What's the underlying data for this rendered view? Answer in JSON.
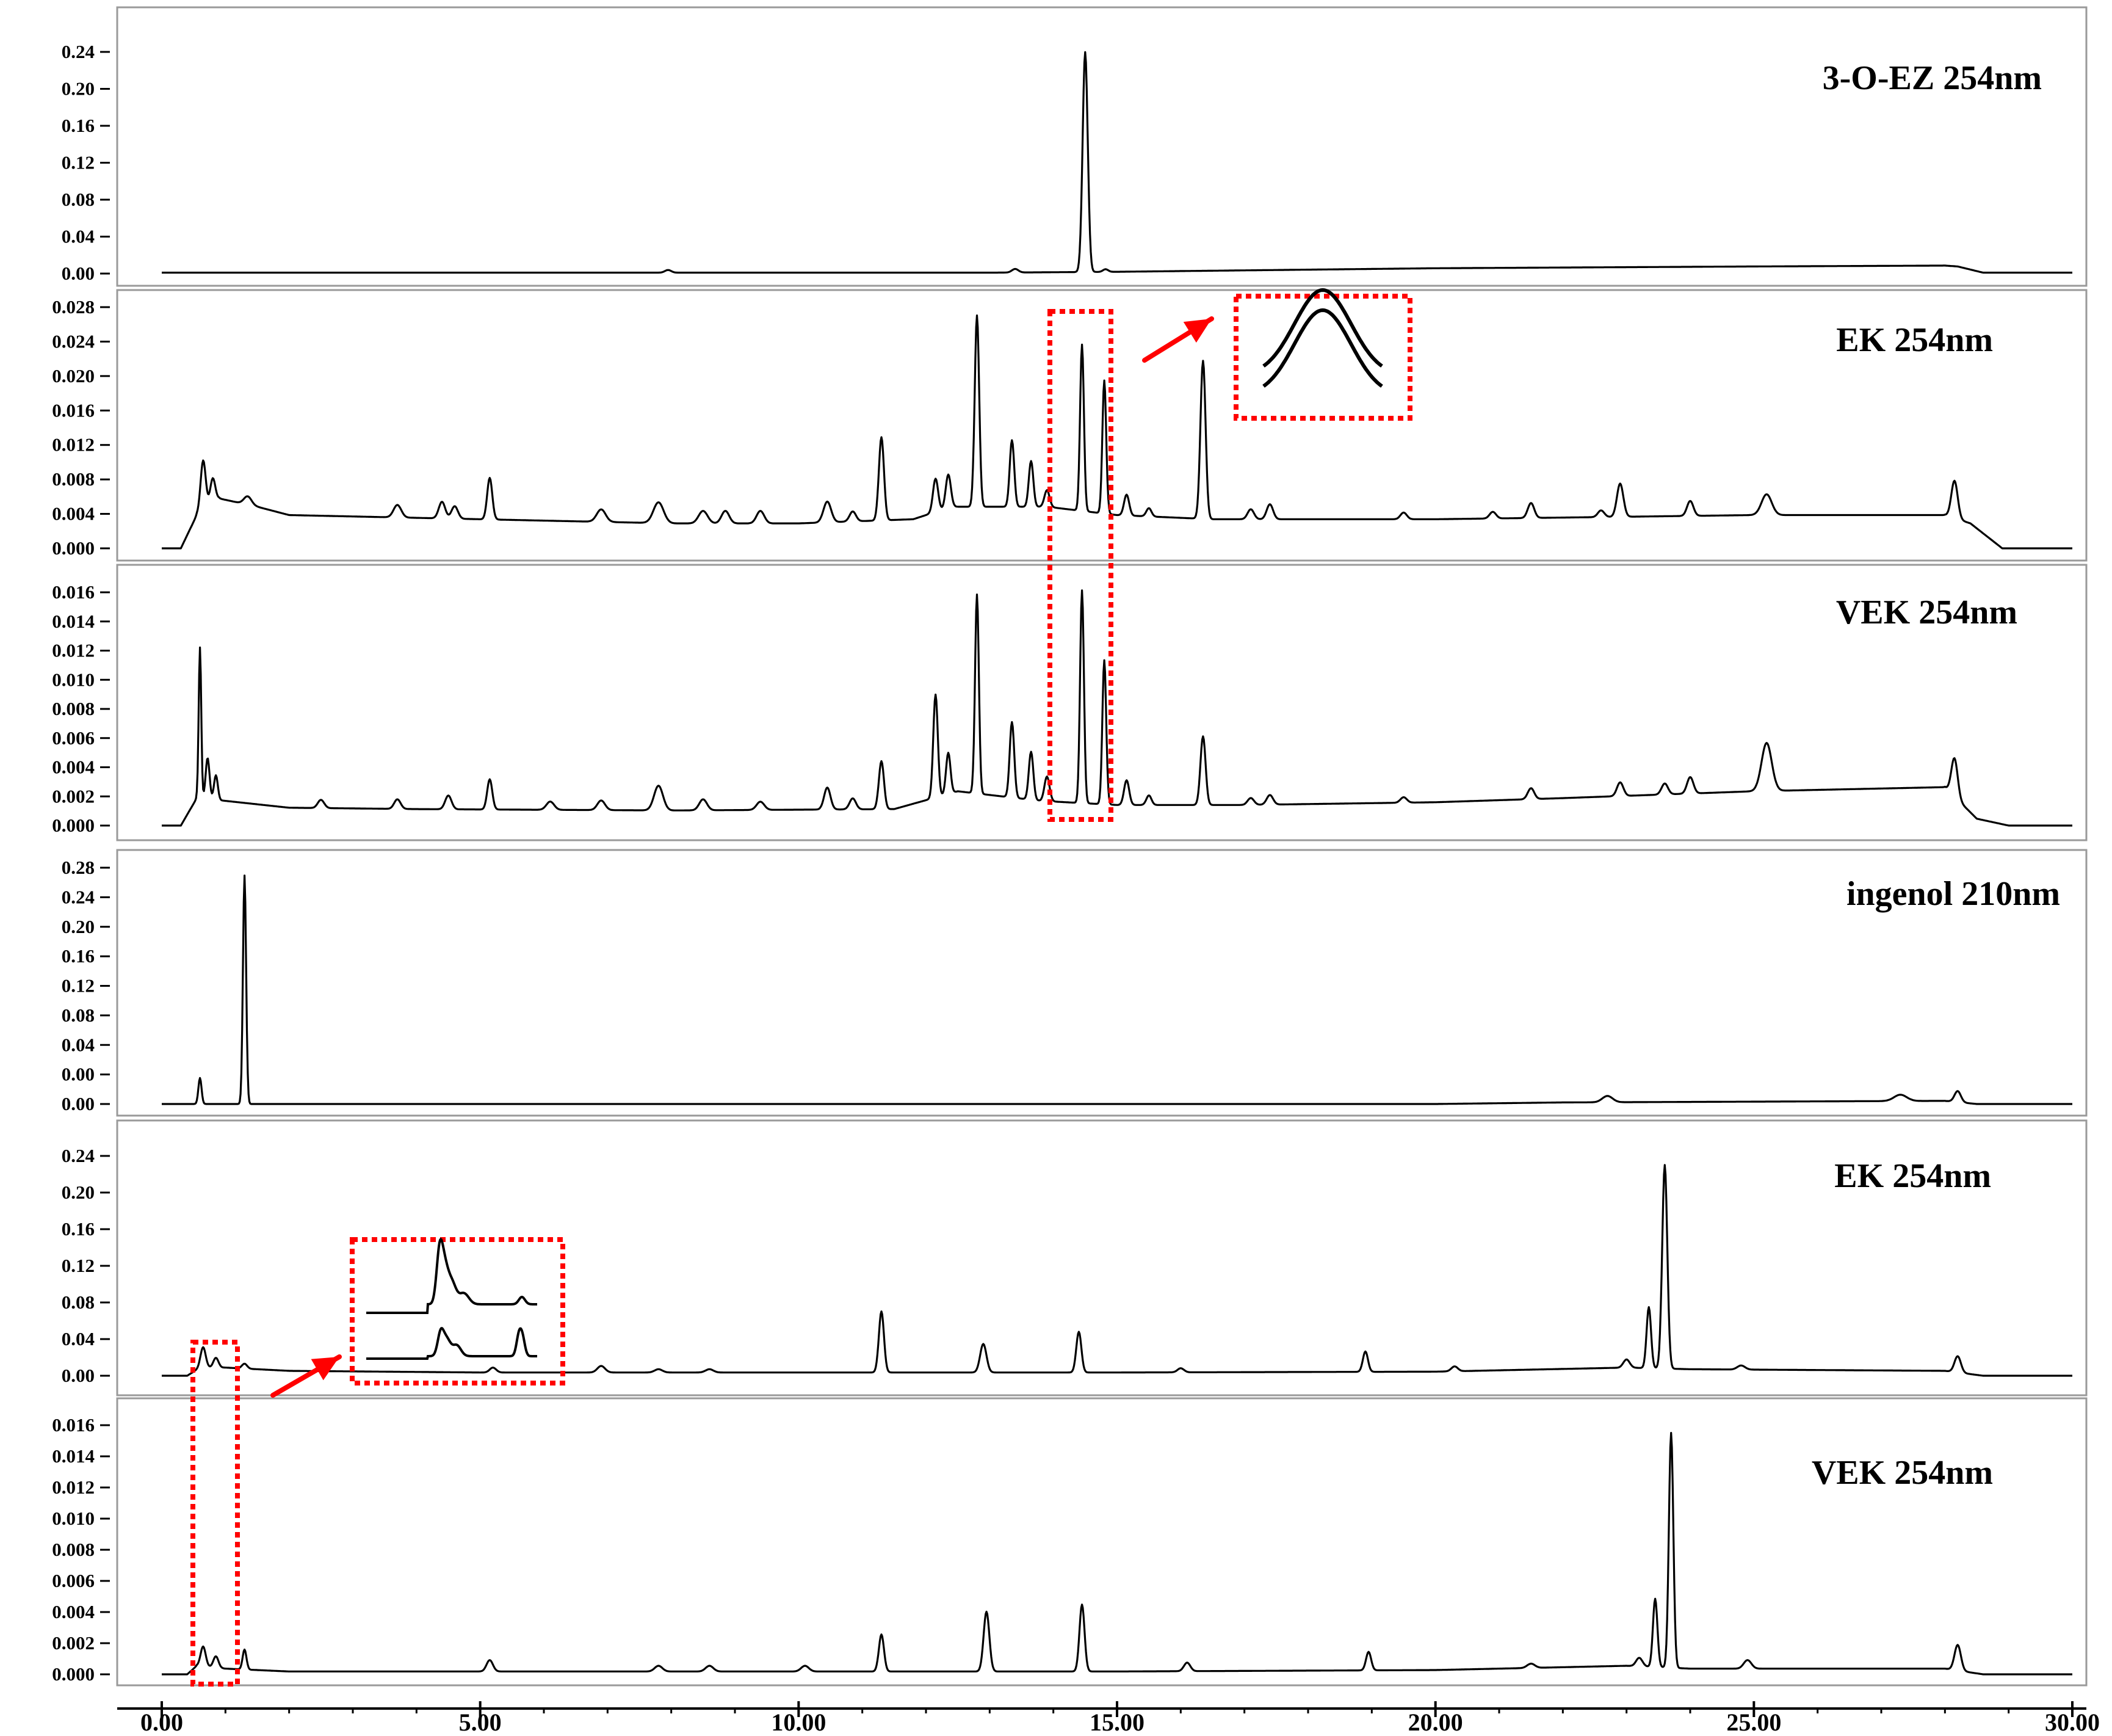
{
  "figure": {
    "x_axis": {
      "range": [
        0,
        30
      ],
      "ticks": [
        {
          "value": 0,
          "label": "0.00"
        },
        {
          "value": 5,
          "label": "5.00"
        },
        {
          "value": 10,
          "label": "10.00"
        },
        {
          "value": 15,
          "label": "15.00"
        },
        {
          "value": 20,
          "label": "20.00"
        },
        {
          "value": 25,
          "label": "25.00"
        },
        {
          "value": 30,
          "label": "30.00"
        }
      ]
    },
    "trace_color": "#000000",
    "highlight_color": "#ff0000"
  },
  "chart_data": [
    {
      "type": "line",
      "title": "3-O-EZ 254nm",
      "ylim": [
        0,
        0.25
      ],
      "yticks": [
        "0.00",
        "0.04",
        "0.08",
        "0.12",
        "0.16",
        "0.20",
        "0.24"
      ],
      "baseline": [
        [
          0.0,
          0.001
        ],
        [
          1.0,
          0.001
        ],
        [
          7.0,
          0.001
        ],
        [
          9.0,
          0.001
        ],
        [
          13.0,
          0.001
        ],
        [
          15.0,
          0.002
        ],
        [
          20.0,
          0.006
        ],
        [
          25.0,
          0.008
        ],
        [
          28.0,
          0.009
        ],
        [
          28.2,
          0.008
        ],
        [
          28.6,
          0.001
        ],
        [
          30.0,
          0.001
        ]
      ],
      "peaks": [
        [
          7.95,
          0.003,
          0.05
        ],
        [
          13.4,
          0.004,
          0.05
        ],
        [
          14.5,
          0.248,
          0.04
        ],
        [
          14.82,
          0.003,
          0.04
        ]
      ]
    },
    {
      "type": "line",
      "title": "EK 254nm",
      "ylim": [
        0,
        0.029
      ],
      "yticks": [
        "0.000",
        "0.004",
        "0.008",
        "0.012",
        "0.016",
        "0.020",
        "0.024",
        "0.028"
      ],
      "baseline": [
        [
          0.0,
          0.0
        ],
        [
          0.3,
          0.0
        ],
        [
          0.55,
          0.004
        ],
        [
          0.9,
          0.006
        ],
        [
          1.5,
          0.005
        ],
        [
          2.0,
          0.004
        ],
        [
          5.0,
          0.0035
        ],
        [
          8.0,
          0.003
        ],
        [
          10.0,
          0.003
        ],
        [
          11.8,
          0.0035
        ],
        [
          12.4,
          0.005
        ],
        [
          13.9,
          0.005
        ],
        [
          15.0,
          0.004
        ],
        [
          16.5,
          0.0035
        ],
        [
          20.0,
          0.0035
        ],
        [
          25.0,
          0.004
        ],
        [
          28.0,
          0.004
        ],
        [
          28.4,
          0.003
        ],
        [
          28.9,
          0.0
        ],
        [
          30.0,
          0.0
        ]
      ],
      "peaks": [
        [
          0.65,
          0.006,
          0.04
        ],
        [
          0.8,
          0.003,
          0.04
        ],
        [
          1.35,
          0.001,
          0.06
        ],
        [
          3.7,
          0.0015,
          0.06
        ],
        [
          4.4,
          0.002,
          0.05
        ],
        [
          4.6,
          0.0015,
          0.05
        ],
        [
          5.15,
          0.005,
          0.04
        ],
        [
          6.9,
          0.0015,
          0.07
        ],
        [
          7.8,
          0.0025,
          0.08
        ],
        [
          8.5,
          0.0015,
          0.07
        ],
        [
          8.85,
          0.0015,
          0.06
        ],
        [
          9.4,
          0.0015,
          0.06
        ],
        [
          10.45,
          0.0025,
          0.06
        ],
        [
          10.85,
          0.0012,
          0.05
        ],
        [
          11.3,
          0.01,
          0.04
        ],
        [
          12.15,
          0.004,
          0.04
        ],
        [
          12.35,
          0.004,
          0.04
        ],
        [
          12.8,
          0.023,
          0.035
        ],
        [
          13.35,
          0.008,
          0.035
        ],
        [
          13.65,
          0.0055,
          0.035
        ],
        [
          13.9,
          0.002,
          0.04
        ],
        [
          14.45,
          0.02,
          0.03
        ],
        [
          14.8,
          0.016,
          0.03
        ],
        [
          15.15,
          0.0025,
          0.04
        ],
        [
          15.5,
          0.001,
          0.04
        ],
        [
          16.35,
          0.019,
          0.04
        ],
        [
          17.1,
          0.0012,
          0.05
        ],
        [
          17.4,
          0.0018,
          0.05
        ],
        [
          19.5,
          0.0008,
          0.05
        ],
        [
          20.9,
          0.0008,
          0.05
        ],
        [
          21.5,
          0.0018,
          0.05
        ],
        [
          22.6,
          0.0008,
          0.05
        ],
        [
          22.9,
          0.004,
          0.05
        ],
        [
          24.0,
          0.0018,
          0.05
        ],
        [
          25.2,
          0.0025,
          0.08
        ],
        [
          28.15,
          0.0045,
          0.05
        ]
      ]
    },
    {
      "type": "line",
      "title": "VEK 254nm",
      "ylim": [
        0,
        0.017
      ],
      "yticks": [
        "0.000",
        "0.002",
        "0.004",
        "0.006",
        "0.008",
        "0.010",
        "0.012",
        "0.014",
        "0.016"
      ],
      "baseline": [
        [
          0.0,
          0.0
        ],
        [
          0.3,
          0.0
        ],
        [
          0.55,
          0.002
        ],
        [
          1.0,
          0.0018
        ],
        [
          2.0,
          0.0013
        ],
        [
          4.0,
          0.0012
        ],
        [
          8.0,
          0.0011
        ],
        [
          11.5,
          0.0012
        ],
        [
          12.5,
          0.0025
        ],
        [
          13.8,
          0.0018
        ],
        [
          15.0,
          0.0015
        ],
        [
          17.0,
          0.0015
        ],
        [
          20.0,
          0.0017
        ],
        [
          22.0,
          0.002
        ],
        [
          25.0,
          0.0025
        ],
        [
          28.0,
          0.0028
        ],
        [
          28.5,
          0.0005
        ],
        [
          29.0,
          0.0
        ],
        [
          30.0,
          0.0
        ]
      ],
      "peaks": [
        [
          0.6,
          0.011,
          0.02
        ],
        [
          0.72,
          0.003,
          0.03
        ],
        [
          0.85,
          0.0018,
          0.03
        ],
        [
          2.5,
          0.0006,
          0.05
        ],
        [
          3.7,
          0.0007,
          0.05
        ],
        [
          4.5,
          0.001,
          0.05
        ],
        [
          5.15,
          0.0022,
          0.04
        ],
        [
          6.1,
          0.0006,
          0.06
        ],
        [
          6.9,
          0.0007,
          0.06
        ],
        [
          7.8,
          0.0018,
          0.07
        ],
        [
          8.5,
          0.0008,
          0.06
        ],
        [
          9.4,
          0.0006,
          0.06
        ],
        [
          10.45,
          0.0016,
          0.05
        ],
        [
          10.85,
          0.0008,
          0.05
        ],
        [
          11.3,
          0.0035,
          0.04
        ],
        [
          12.15,
          0.0075,
          0.035
        ],
        [
          12.35,
          0.003,
          0.035
        ],
        [
          12.8,
          0.0145,
          0.03
        ],
        [
          13.35,
          0.0055,
          0.035
        ],
        [
          13.65,
          0.0035,
          0.035
        ],
        [
          13.9,
          0.0018,
          0.04
        ],
        [
          14.45,
          0.0155,
          0.03
        ],
        [
          14.8,
          0.0105,
          0.03
        ],
        [
          15.15,
          0.0018,
          0.04
        ],
        [
          15.5,
          0.0007,
          0.04
        ],
        [
          16.35,
          0.005,
          0.04
        ],
        [
          17.1,
          0.0005,
          0.05
        ],
        [
          17.4,
          0.0007,
          0.05
        ],
        [
          19.5,
          0.0004,
          0.05
        ],
        [
          21.5,
          0.0008,
          0.05
        ],
        [
          22.9,
          0.001,
          0.05
        ],
        [
          23.6,
          0.0008,
          0.05
        ],
        [
          24.0,
          0.0012,
          0.05
        ],
        [
          25.2,
          0.0035,
          0.08
        ],
        [
          28.15,
          0.0028,
          0.05
        ]
      ]
    },
    {
      "type": "line",
      "title": "ingenol 210nm",
      "ylim": [
        0,
        0.3
      ],
      "yticks": [
        "0.00",
        "0.00",
        "0.04",
        "0.08",
        "0.12",
        "0.16",
        "0.20",
        "0.24",
        "0.28"
      ],
      "baseline": [
        [
          0.0,
          0.0
        ],
        [
          20.0,
          0.0
        ],
        [
          22.0,
          0.002
        ],
        [
          28.0,
          0.004
        ],
        [
          28.5,
          0.0
        ],
        [
          30.0,
          0.0
        ]
      ],
      "peaks": [
        [
          0.6,
          0.033,
          0.025
        ],
        [
          1.3,
          0.29,
          0.025
        ],
        [
          22.7,
          0.008,
          0.08
        ],
        [
          27.3,
          0.008,
          0.1
        ],
        [
          28.2,
          0.014,
          0.05
        ]
      ]
    },
    {
      "type": "line",
      "title": "EK 254nm",
      "ylim": [
        0,
        0.27
      ],
      "yticks": [
        "0.00",
        "0.04",
        "0.08",
        "0.12",
        "0.16",
        "0.20",
        "0.24"
      ],
      "baseline": [
        [
          0.0,
          0.0
        ],
        [
          0.4,
          0.0
        ],
        [
          0.6,
          0.01
        ],
        [
          1.0,
          0.01
        ],
        [
          2.0,
          0.006
        ],
        [
          5.0,
          0.004
        ],
        [
          10.0,
          0.004
        ],
        [
          15.0,
          0.004
        ],
        [
          20.0,
          0.005
        ],
        [
          23.0,
          0.01
        ],
        [
          24.0,
          0.008
        ],
        [
          28.0,
          0.006
        ],
        [
          28.6,
          0.0
        ],
        [
          30.0,
          0.0
        ]
      ],
      "peaks": [
        [
          0.65,
          0.025,
          0.04
        ],
        [
          0.85,
          0.012,
          0.04
        ],
        [
          1.3,
          0.006,
          0.04
        ],
        [
          5.2,
          0.006,
          0.05
        ],
        [
          6.9,
          0.008,
          0.06
        ],
        [
          7.8,
          0.004,
          0.06
        ],
        [
          8.6,
          0.004,
          0.06
        ],
        [
          11.3,
          0.075,
          0.04
        ],
        [
          12.9,
          0.035,
          0.05
        ],
        [
          14.4,
          0.05,
          0.04
        ],
        [
          16.0,
          0.005,
          0.05
        ],
        [
          18.9,
          0.025,
          0.04
        ],
        [
          20.3,
          0.006,
          0.05
        ],
        [
          23.0,
          0.01,
          0.05
        ],
        [
          23.35,
          0.075,
          0.035
        ],
        [
          23.6,
          0.25,
          0.04
        ],
        [
          24.8,
          0.005,
          0.06
        ],
        [
          28.2,
          0.02,
          0.05
        ]
      ]
    },
    {
      "type": "line",
      "title": "VEK 254nm",
      "ylim": [
        0,
        0.0175
      ],
      "yticks": [
        "0.000",
        "0.002",
        "0.004",
        "0.006",
        "0.008",
        "0.010",
        "0.012",
        "0.014",
        "0.016"
      ],
      "baseline": [
        [
          0.0,
          0.0
        ],
        [
          0.4,
          0.0
        ],
        [
          0.55,
          0.0006
        ],
        [
          1.0,
          0.0004
        ],
        [
          2.0,
          0.0002
        ],
        [
          15.0,
          0.0002
        ],
        [
          20.0,
          0.0003
        ],
        [
          23.0,
          0.0006
        ],
        [
          24.0,
          0.0004
        ],
        [
          28.0,
          0.0004
        ],
        [
          28.6,
          0.0
        ],
        [
          30.0,
          0.0
        ]
      ],
      "peaks": [
        [
          0.65,
          0.0014,
          0.04
        ],
        [
          0.85,
          0.0008,
          0.04
        ],
        [
          1.3,
          0.0014,
          0.03
        ],
        [
          5.15,
          0.0008,
          0.05
        ],
        [
          7.8,
          0.0004,
          0.06
        ],
        [
          8.6,
          0.0004,
          0.06
        ],
        [
          10.1,
          0.0004,
          0.06
        ],
        [
          11.3,
          0.0026,
          0.04
        ],
        [
          12.95,
          0.0042,
          0.045
        ],
        [
          14.45,
          0.0047,
          0.04
        ],
        [
          16.1,
          0.0006,
          0.05
        ],
        [
          18.95,
          0.0013,
          0.04
        ],
        [
          21.5,
          0.0003,
          0.06
        ],
        [
          23.2,
          0.0006,
          0.05
        ],
        [
          23.45,
          0.0048,
          0.035
        ],
        [
          23.7,
          0.0165,
          0.035
        ],
        [
          24.9,
          0.0006,
          0.06
        ],
        [
          28.2,
          0.0018,
          0.05
        ]
      ]
    }
  ]
}
